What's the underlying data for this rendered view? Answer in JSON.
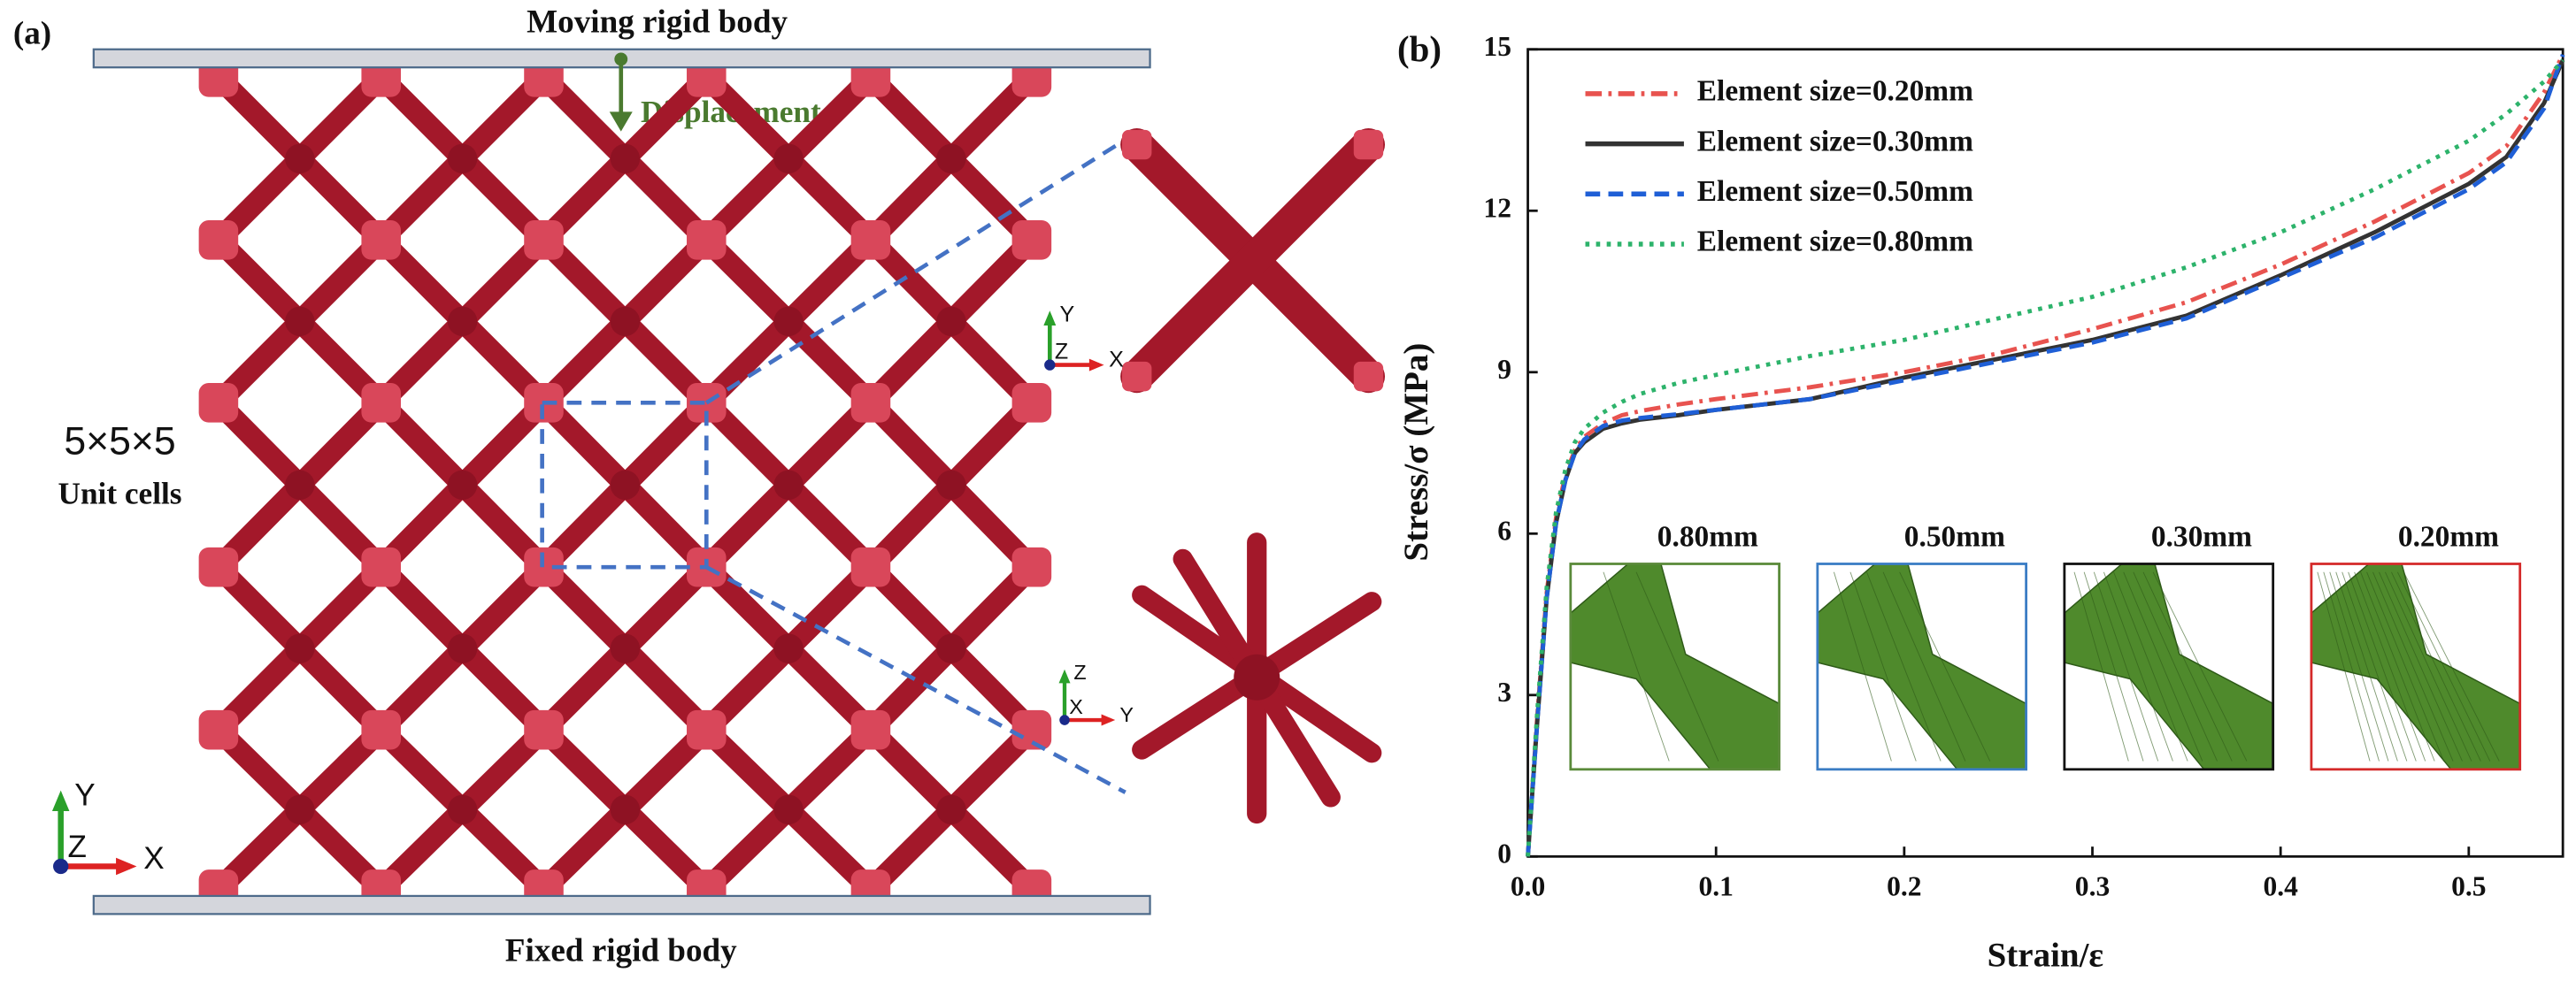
{
  "panel_a": {
    "label": "(a)",
    "top_label": "Moving rigid body",
    "arrow_label": "Displacement",
    "cells_label": "5×5×5",
    "cells_sub": "Unit cells",
    "bottom_label": "Fixed rigid body",
    "triads": [
      [
        "Y",
        "Z",
        "X"
      ],
      [
        "Y",
        "Z",
        "X"
      ],
      [
        "Z",
        "X",
        "Y"
      ]
    ]
  },
  "chart_data": {
    "type": "line",
    "panel_label": "(b)",
    "xlabel": "Strain/ε",
    "ylabel": "Stress/σ (MPa)",
    "xlim": [
      0,
      0.55
    ],
    "ylim": [
      0,
      15
    ],
    "xticks": [
      {
        "value": 0,
        "label": "0.0"
      },
      0.1,
      0.2,
      0.3,
      0.4,
      0.5
    ],
    "yticks": [
      0,
      3,
      6,
      9,
      12,
      15
    ],
    "x": [
      0,
      0.005,
      0.01,
      0.015,
      0.02,
      0.025,
      0.03,
      0.04,
      0.05,
      0.06,
      0.08,
      0.1,
      0.15,
      0.2,
      0.25,
      0.3,
      0.35,
      0.4,
      0.45,
      0.5,
      0.52,
      0.54,
      0.55
    ],
    "legend": "upper left",
    "series": [
      {
        "name": "Element size=0.20mm",
        "color": "#e8534f",
        "dash": "dashdot",
        "values": [
          0,
          2.6,
          4.9,
          6.3,
          7.1,
          7.55,
          7.8,
          8.05,
          8.2,
          8.28,
          8.4,
          8.5,
          8.72,
          9.0,
          9.35,
          9.8,
          10.3,
          11.0,
          11.8,
          12.7,
          13.2,
          14.2,
          14.9
        ]
      },
      {
        "name": "Element size=0.30mm",
        "color": "#333333",
        "dash": "solid",
        "values": [
          0,
          2.5,
          4.8,
          6.2,
          7.0,
          7.5,
          7.7,
          7.95,
          8.05,
          8.12,
          8.2,
          8.3,
          8.5,
          8.9,
          9.25,
          9.6,
          10.05,
          10.8,
          11.6,
          12.5,
          13.0,
          14.0,
          14.8
        ]
      },
      {
        "name": "Element size=0.50mm",
        "color": "#1f5fd6",
        "dash": "dashed",
        "values": [
          0,
          2.5,
          4.8,
          6.2,
          7.0,
          7.5,
          7.75,
          8.0,
          8.1,
          8.15,
          8.22,
          8.3,
          8.5,
          8.85,
          9.2,
          9.55,
          10.0,
          10.75,
          11.5,
          12.4,
          12.9,
          13.9,
          14.9
        ]
      },
      {
        "name": "Element size=0.80mm",
        "color": "#2db36b",
        "dash": "dotted",
        "values": [
          0,
          2.7,
          5.0,
          6.4,
          7.2,
          7.7,
          7.95,
          8.25,
          8.45,
          8.6,
          8.8,
          8.95,
          9.3,
          9.6,
          10.0,
          10.4,
          10.95,
          11.6,
          12.4,
          13.3,
          13.8,
          14.4,
          14.8
        ]
      }
    ],
    "insets": [
      {
        "label": "0.80mm",
        "color": "#5a8a3a"
      },
      {
        "label": "0.50mm",
        "color": "#3a7cc4"
      },
      {
        "label": "0.30mm",
        "color": "#111111"
      },
      {
        "label": "0.20mm",
        "color": "#d42a2a"
      }
    ]
  }
}
